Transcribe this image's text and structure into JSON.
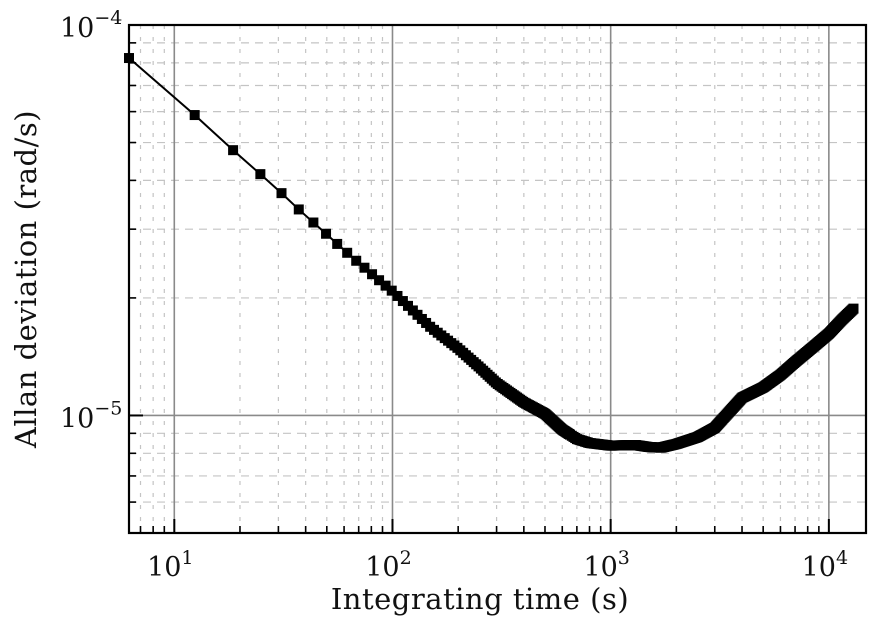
{
  "chart_data": {
    "type": "line",
    "title": "",
    "xlabel": "Integrating time (s)",
    "ylabel": "Allan deviation (rad/s)",
    "xscale": "log",
    "yscale": "log",
    "xlim": [
      6.2,
      14800
    ],
    "ylim": [
      5e-06,
      0.0001
    ],
    "grid": true,
    "legend": null,
    "x_tick_labels": [
      {
        "base": "10",
        "exp": "1",
        "value": 10
      },
      {
        "base": "10",
        "exp": "2",
        "value": 100
      },
      {
        "base": "10",
        "exp": "3",
        "value": 1000
      },
      {
        "base": "10",
        "exp": "4",
        "value": 10000
      }
    ],
    "y_tick_labels": [
      {
        "base": "10",
        "exp": "−4",
        "value": 0.0001
      },
      {
        "base": "10",
        "exp": "−5",
        "value": 1e-05
      }
    ],
    "series": [
      {
        "name": "Allan deviation",
        "color": "#000000",
        "marker": "square",
        "x": [
          6.2,
          12.4,
          18.6,
          24.8,
          31,
          37.2,
          43.4,
          49.6,
          55.8,
          62,
          68.2,
          74.4,
          80.6,
          86.8,
          93,
          100,
          120,
          150,
          200,
          250,
          300,
          400,
          500,
          600,
          700,
          800,
          1000,
          1300,
          1500,
          1700,
          2000,
          2500,
          3000,
          4000,
          5000,
          6000,
          7000,
          8500,
          10000,
          11500,
          13000
        ],
        "y": [
          8.23e-05,
          5.88e-05,
          4.78e-05,
          4.15e-05,
          3.71e-05,
          3.37e-05,
          3.12e-05,
          2.92e-05,
          2.75e-05,
          2.61e-05,
          2.49e-05,
          2.39e-05,
          2.3e-05,
          2.22e-05,
          2.15e-05,
          2.08e-05,
          1.89e-05,
          1.68e-05,
          1.485e-05,
          1.33e-05,
          1.21e-05,
          1.08e-05,
          1.01e-05,
          9.2e-06,
          8.7e-06,
          8.5e-06,
          8.37e-06,
          8.4e-06,
          8.3e-06,
          8.27e-06,
          8.45e-06,
          8.8e-06,
          9.3e-06,
          1.11e-05,
          1.18e-05,
          1.27e-05,
          1.37e-05,
          1.5e-05,
          1.62e-05,
          1.76e-05,
          1.88e-05
        ]
      }
    ]
  }
}
